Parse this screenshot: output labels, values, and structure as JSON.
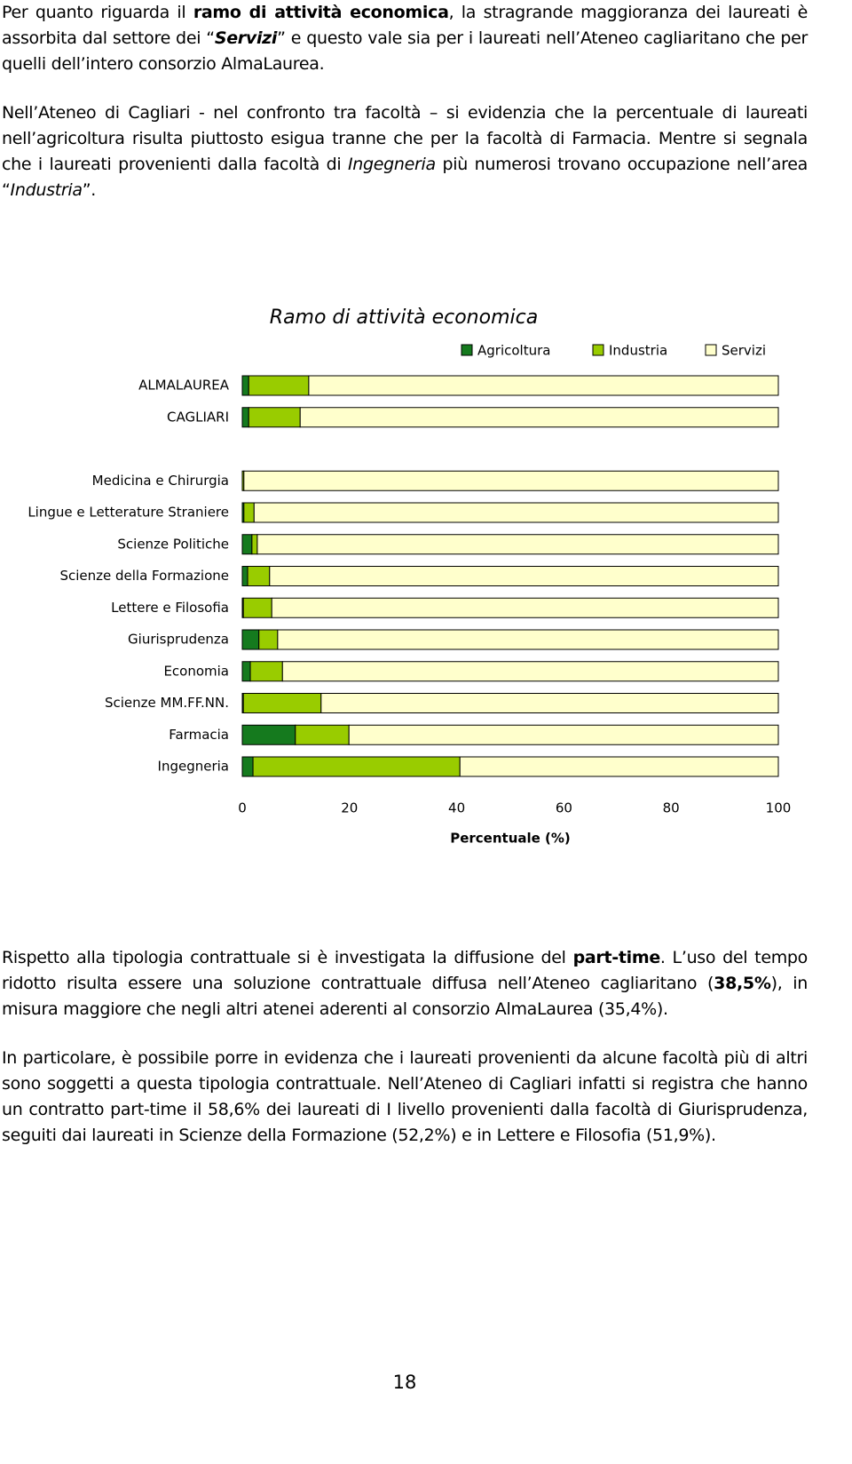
{
  "paragraphs_top": [
    [
      {
        "text": "Per quanto riguarda il "
      },
      {
        "text": "ramo di attività economica",
        "bold": true
      },
      {
        "text": ", la stragrande maggioranza dei laureati è assorbita dal settore dei “"
      },
      {
        "text": "Servizi",
        "bold": true,
        "italic": true
      },
      {
        "text": "” e questo vale sia per i laureati nell’Ateneo cagliaritano che per quelli dell’intero consorzio AlmaLaurea."
      }
    ],
    [
      {
        "text": "Nell’Ateneo di Cagliari - nel confronto tra facoltà – si evidenzia che la percentuale di laureati nell’agricoltura risulta piuttosto esigua tranne che per la facoltà di Farmacia. Mentre si segnala che i laureati provenienti dalla facoltà di "
      },
      {
        "text": "Ingegneria",
        "italic": true
      },
      {
        "text": " più numerosi trovano occupazione nell’area “"
      },
      {
        "text": "Industria",
        "italic": true
      },
      {
        "text": "”."
      }
    ]
  ],
  "chart_data": {
    "type": "stacked-barh",
    "title": "Ramo di attività economica",
    "xlabel": "Percentuale (%)",
    "categories": [
      "ALMALAUREA",
      "CAGLIARI",
      null,
      "Medicina e Chirurgia",
      "Lingue e Letterature Straniere",
      "Scienze Politiche",
      "Scienze della Formazione",
      "Lettere e Filosofia",
      "Giurisprudenza",
      "Economia",
      "Scienze MM.FF.NN.",
      "Farmacia",
      "Ingegneria"
    ],
    "series": [
      {
        "name": "Agricoltura",
        "color": "#157a1e",
        "values": [
          1.2,
          1.2,
          null,
          0,
          0.3,
          1.8,
          1.0,
          0.2,
          3.1,
          1.5,
          0.2,
          9.9,
          2.0
        ]
      },
      {
        "name": "Industria",
        "color": "#99cc00",
        "values": [
          11.2,
          9.6,
          null,
          0.3,
          1.9,
          1.0,
          4.1,
          5.3,
          3.5,
          6.0,
          14.5,
          10.0,
          38.6
        ]
      },
      {
        "name": "Servizi",
        "color": "#ffffcc",
        "values": [
          87.6,
          89.2,
          null,
          99.7,
          97.8,
          97.2,
          94.9,
          94.5,
          93.4,
          92.5,
          85.3,
          80.1,
          59.4
        ]
      }
    ],
    "xlim": [
      0,
      100
    ],
    "xticks": [
      0,
      20,
      40,
      60,
      80,
      100
    ],
    "legend": "top-right"
  },
  "paragraphs_bottom": [
    [
      {
        "text": "Rispetto alla tipologia contrattuale si è investigata la diffusione del "
      },
      {
        "text": "part-time",
        "bold": true
      },
      {
        "text": ". L’uso del tempo ridotto risulta essere una soluzione contrattuale diffusa nell’Ateneo cagliaritano ("
      },
      {
        "text": "38,5%",
        "bold": true
      },
      {
        "text": "), in misura maggiore che negli altri atenei aderenti al consorzio AlmaLaurea (35,4%)."
      }
    ],
    [
      {
        "text": "In particolare, è possibile porre in evidenza che i laureati provenienti da alcune facoltà più di altri sono soggetti a questa tipologia contrattuale. Nell’Ateneo di Cagliari infatti si registra che hanno un contratto part-time il 58,6% dei laureati di I livello provenienti dalla facoltà di Giurisprudenza, seguiti dai laureati in Scienze della Formazione (52,2%) e in Lettere e Filosofia (51,9%)."
      }
    ]
  ],
  "page_number": "18"
}
